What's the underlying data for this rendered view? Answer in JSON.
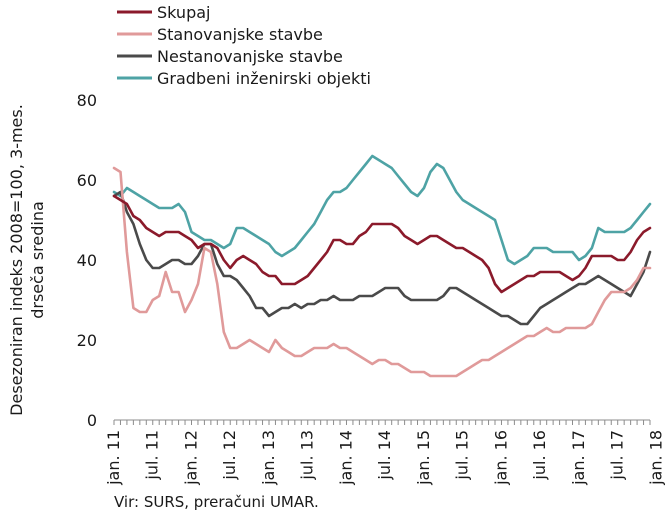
{
  "chart_data": {
    "type": "line",
    "ylabel": [
      "Desezoniran indeks 2008=100, 3-mes.",
      "drseča sredina"
    ],
    "ylim": [
      0,
      80
    ],
    "yticks": [
      0,
      20,
      40,
      60,
      80
    ],
    "x_tick_labels": [
      "jan. 11",
      "jul. 11",
      "jan. 12",
      "jul. 12",
      "jan. 13",
      "jul. 13",
      "jan. 14",
      "jul. 14",
      "jan. 15",
      "jul. 15",
      "jan. 16",
      "jul. 16",
      "jan. 17",
      "jul. 17",
      "jan. 18"
    ],
    "grid": false,
    "legend_position": "top",
    "series": [
      {
        "name": "Skupaj",
        "color": "#8b1a2b",
        "values": [
          56,
          55,
          54,
          51,
          50,
          48,
          47,
          46,
          47,
          47,
          47,
          46,
          45,
          43,
          44,
          44,
          43,
          40,
          38,
          40,
          41,
          40,
          39,
          37,
          36,
          36,
          34,
          34,
          34,
          35,
          36,
          38,
          40,
          42,
          45,
          45,
          44,
          44,
          46,
          47,
          49,
          49,
          49,
          49,
          48,
          46,
          45,
          44,
          45,
          46,
          46,
          45,
          44,
          43,
          43,
          42,
          41,
          40,
          38,
          34,
          32,
          33,
          34,
          35,
          36,
          36,
          37,
          37,
          37,
          37,
          36,
          35,
          36,
          38,
          41,
          41,
          41,
          41,
          40,
          40,
          42,
          45,
          47,
          48
        ]
      },
      {
        "name": "Stanovanjske stavbe",
        "color": "#e09a9a",
        "values": [
          63,
          62,
          42,
          28,
          27,
          27,
          30,
          31,
          37,
          32,
          32,
          27,
          30,
          34,
          43,
          42,
          34,
          22,
          18,
          18,
          19,
          20,
          19,
          18,
          17,
          20,
          18,
          17,
          16,
          16,
          17,
          18,
          18,
          18,
          19,
          18,
          18,
          17,
          16,
          15,
          14,
          15,
          15,
          14,
          14,
          13,
          12,
          12,
          12,
          11,
          11,
          11,
          11,
          11,
          12,
          13,
          14,
          15,
          15,
          16,
          17,
          18,
          19,
          20,
          21,
          21,
          22,
          23,
          22,
          22,
          23,
          23,
          23,
          23,
          24,
          27,
          30,
          32,
          32,
          32,
          33,
          35,
          38,
          38
        ]
      },
      {
        "name": "Nestanovanjske stavbe",
        "color": "#4a4a4a",
        "values": [
          56,
          57,
          52,
          49,
          44,
          40,
          38,
          38,
          39,
          40,
          40,
          39,
          39,
          41,
          44,
          44,
          39,
          36,
          36,
          35,
          33,
          31,
          28,
          28,
          26,
          27,
          28,
          28,
          29,
          28,
          29,
          29,
          30,
          30,
          31,
          30,
          30,
          30,
          31,
          31,
          31,
          32,
          33,
          33,
          33,
          31,
          30,
          30,
          30,
          30,
          30,
          31,
          33,
          33,
          32,
          31,
          30,
          29,
          28,
          27,
          26,
          26,
          25,
          24,
          24,
          26,
          28,
          29,
          30,
          31,
          32,
          33,
          34,
          34,
          35,
          36,
          35,
          34,
          33,
          32,
          31,
          34,
          37,
          42
        ]
      },
      {
        "name": "Gradbeni inženirski objekti",
        "color": "#4ea3a5",
        "values": [
          57,
          56,
          58,
          57,
          56,
          55,
          54,
          53,
          53,
          53,
          54,
          52,
          47,
          46,
          45,
          45,
          44,
          43,
          44,
          48,
          48,
          47,
          46,
          45,
          44,
          42,
          41,
          42,
          43,
          45,
          47,
          49,
          52,
          55,
          57,
          57,
          58,
          60,
          62,
          64,
          66,
          65,
          64,
          63,
          61,
          59,
          57,
          56,
          58,
          62,
          64,
          63,
          60,
          57,
          55,
          54,
          53,
          52,
          51,
          50,
          45,
          40,
          39,
          40,
          41,
          43,
          43,
          43,
          42,
          42,
          42,
          42,
          40,
          41,
          43,
          48,
          47,
          47,
          47,
          47,
          48,
          50,
          52,
          54
        ]
      }
    ]
  },
  "source_text": "Vir: SURS, preračuni UMAR."
}
